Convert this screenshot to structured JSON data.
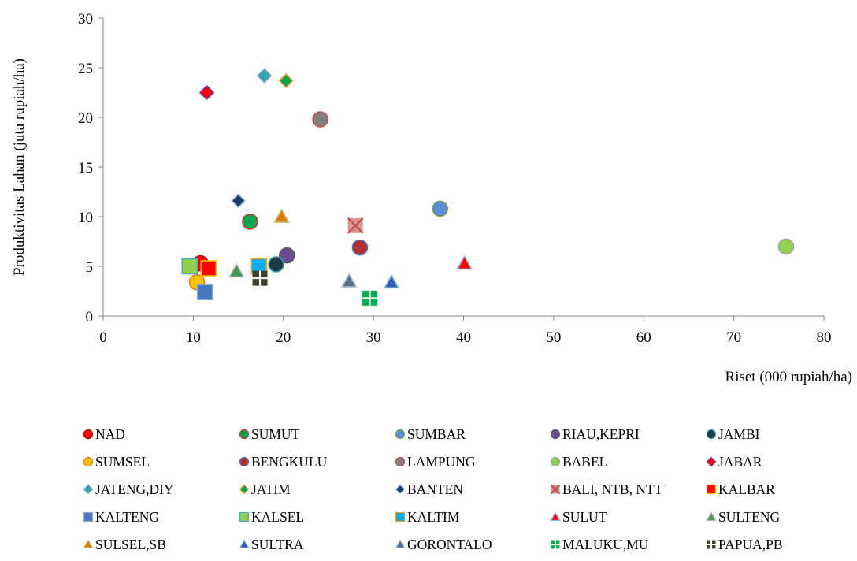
{
  "chart_data": {
    "type": "scatter",
    "title": "",
    "xlabel": "Riset (000 rupiah/ha)",
    "ylabel": "Produktivitas Lahan (juta rupiah/ha)",
    "xlim": [
      0,
      80
    ],
    "ylim": [
      0,
      30
    ],
    "xticks": [
      0,
      10,
      20,
      30,
      40,
      50,
      60,
      70,
      80
    ],
    "yticks": [
      0,
      5,
      10,
      15,
      20,
      25,
      30
    ],
    "grid": false,
    "legend_position": "bottom",
    "series": [
      {
        "name": "NAD",
        "marker": "circle",
        "color": "#ff0000",
        "edge": "#c00000",
        "x": 10.8,
        "y": 5.3
      },
      {
        "name": "SUMUT",
        "marker": "circle",
        "color": "#00a550",
        "edge": "#c0392b",
        "x": 16.3,
        "y": 9.5
      },
      {
        "name": "SUMBAR",
        "marker": "circle",
        "color": "#5b8fd6",
        "edge": "#7f9f50",
        "x": 37.4,
        "y": 10.8
      },
      {
        "name": "RIAU,KEPRI",
        "marker": "circle",
        "color": "#6a4c93",
        "edge": "#5a5a5a",
        "x": 20.4,
        "y": 6.1
      },
      {
        "name": "JAMBI",
        "marker": "circle",
        "color": "#1f3a45",
        "edge": "#3d9ab0",
        "x": 19.2,
        "y": 5.2
      },
      {
        "name": "SUMSEL",
        "marker": "circle",
        "color": "#ffc000",
        "edge": "#e08020",
        "x": 10.4,
        "y": 3.4
      },
      {
        "name": "BENGKULU",
        "marker": "circle",
        "color": "#b03030",
        "edge": "#4a78c0",
        "x": 28.5,
        "y": 6.9
      },
      {
        "name": "LAMPUNG",
        "marker": "circle",
        "color": "#808080",
        "edge": "#c0504d",
        "x": 24.1,
        "y": 19.8
      },
      {
        "name": "BABEL",
        "marker": "circle",
        "color": "#92d050",
        "edge": "#a6a6a6",
        "x": 75.8,
        "y": 7.0
      },
      {
        "name": "JABAR",
        "marker": "diamond",
        "color": "#ff0000",
        "edge": "#7030a0",
        "x": 11.5,
        "y": 22.5
      },
      {
        "name": "JATENG,DIY",
        "marker": "diamond",
        "color": "#31a6b5",
        "edge": "#7fa0c0",
        "x": 17.9,
        "y": 24.2
      },
      {
        "name": "JATIM",
        "marker": "diamond",
        "color": "#00a550",
        "edge": "#f0a030",
        "x": 20.3,
        "y": 23.7
      },
      {
        "name": "BANTEN",
        "marker": "diamond",
        "color": "#1f3864",
        "edge": "#9dc3e6",
        "x": 15.0,
        "y": 11.6
      },
      {
        "name": "BALI, NTB, NTT",
        "marker": "xsquare",
        "color": "#d99694",
        "edge": "#c0504d",
        "x": 28.0,
        "y": 9.1
      },
      {
        "name": "KALBAR",
        "marker": "square",
        "color": "#ff0000",
        "edge": "#ffc000",
        "x": 11.7,
        "y": 4.8
      },
      {
        "name": "KALTENG",
        "marker": "square",
        "color": "#4a78c0",
        "edge": "#8fa8d8",
        "x": 11.3,
        "y": 2.4
      },
      {
        "name": "KALSEL",
        "marker": "square",
        "color": "#92d050",
        "edge": "#4bacc6",
        "x": 9.6,
        "y": 5.0
      },
      {
        "name": "KALTIM",
        "marker": "square",
        "color": "#00b0f0",
        "edge": "#f0a030",
        "x": 17.3,
        "y": 5.0
      },
      {
        "name": "SULUT",
        "marker": "triangle",
        "color": "#ff0000",
        "edge": "#8fb4e0",
        "x": 40.1,
        "y": 5.3
      },
      {
        "name": "SULTENG",
        "marker": "triangle",
        "color": "#3a9a50",
        "edge": "#c0b0b0",
        "x": 14.8,
        "y": 4.5
      },
      {
        "name": "SULSEL,SB",
        "marker": "triangle",
        "color": "#e07a10",
        "edge": "#d0c070",
        "x": 19.8,
        "y": 10.0
      },
      {
        "name": "SULTRA",
        "marker": "triangle",
        "color": "#2f5fb0",
        "edge": "#9dc3e6",
        "x": 32.0,
        "y": 3.4
      },
      {
        "name": "GORONTALO",
        "marker": "triangle",
        "color": "#5a6d8a",
        "edge": "#a0c0e0",
        "x": 27.3,
        "y": 3.5
      },
      {
        "name": "MALUKU,MU",
        "marker": "plussquare",
        "color": "#00b050",
        "edge": "#00b050",
        "x": 29.6,
        "y": 1.8
      },
      {
        "name": "PAPUA,PB",
        "marker": "plussquare",
        "color": "#404030",
        "edge": "#7f7f7f",
        "x": 17.4,
        "y": 3.8
      }
    ]
  }
}
